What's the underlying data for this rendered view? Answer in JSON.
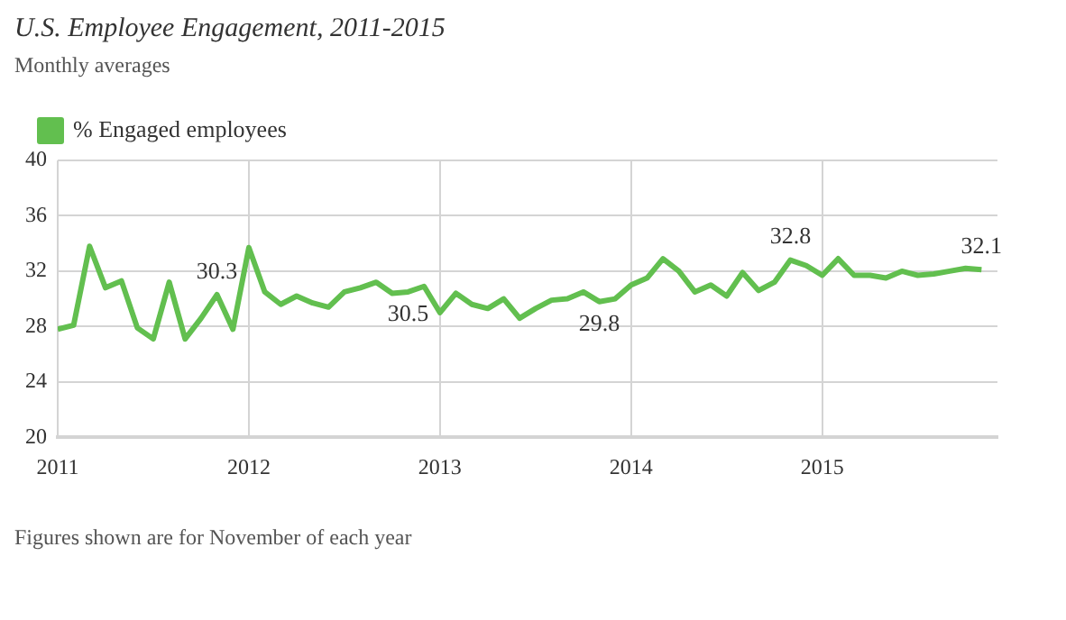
{
  "chart_data": {
    "type": "line",
    "title": "U.S. Employee Engagement, 2011-2015",
    "subtitle": "Monthly averages",
    "x": [
      "2011-01",
      "2011-02",
      "2011-03",
      "2011-04",
      "2011-05",
      "2011-06",
      "2011-07",
      "2011-08",
      "2011-09",
      "2011-10",
      "2011-11",
      "2011-12",
      "2012-01",
      "2012-02",
      "2012-03",
      "2012-04",
      "2012-05",
      "2012-06",
      "2012-07",
      "2012-08",
      "2012-09",
      "2012-10",
      "2012-11",
      "2012-12",
      "2013-01",
      "2013-02",
      "2013-03",
      "2013-04",
      "2013-05",
      "2013-06",
      "2013-07",
      "2013-08",
      "2013-09",
      "2013-10",
      "2013-11",
      "2013-12",
      "2014-01",
      "2014-02",
      "2014-03",
      "2014-04",
      "2014-05",
      "2014-06",
      "2014-07",
      "2014-08",
      "2014-09",
      "2014-10",
      "2014-11",
      "2014-12",
      "2015-01",
      "2015-02",
      "2015-03",
      "2015-04",
      "2015-05",
      "2015-06",
      "2015-07",
      "2015-08",
      "2015-09",
      "2015-10",
      "2015-11"
    ],
    "series": [
      {
        "name": "% Engaged employees",
        "color": "#62bf4f",
        "values": [
          27.8,
          28.1,
          33.8,
          30.8,
          31.3,
          27.9,
          27.1,
          31.2,
          27.1,
          28.6,
          30.3,
          27.8,
          33.7,
          30.5,
          29.6,
          30.2,
          29.7,
          29.4,
          30.5,
          30.8,
          31.2,
          30.4,
          30.5,
          30.9,
          29.0,
          30.4,
          29.6,
          29.3,
          30.0,
          28.6,
          29.3,
          29.9,
          30.0,
          30.5,
          29.8,
          30.0,
          31.0,
          31.5,
          32.9,
          32.0,
          30.5,
          31.0,
          30.2,
          31.9,
          30.6,
          31.2,
          32.8,
          32.4,
          31.7,
          32.9,
          31.7,
          31.7,
          31.5,
          32.0,
          31.7,
          31.8,
          32.0,
          32.2,
          32.1
        ],
        "value_labels": [
          null,
          null,
          null,
          null,
          null,
          null,
          null,
          null,
          null,
          null,
          "30.3",
          null,
          null,
          null,
          null,
          null,
          null,
          null,
          null,
          null,
          null,
          null,
          "30.5",
          null,
          null,
          null,
          null,
          null,
          null,
          null,
          null,
          null,
          null,
          null,
          "29.8",
          null,
          null,
          null,
          null,
          null,
          null,
          null,
          null,
          null,
          null,
          null,
          "32.8",
          null,
          null,
          null,
          null,
          null,
          null,
          null,
          null,
          null,
          null,
          null,
          "32.1"
        ]
      }
    ],
    "xlim": [
      "2011-01",
      "2015-12"
    ],
    "xticks": [
      "2011",
      "2012",
      "2013",
      "2014",
      "2015"
    ],
    "ylim": [
      20,
      40
    ],
    "yticks": [
      20,
      24,
      28,
      32,
      36,
      40
    ],
    "grid": true,
    "legend": "top left",
    "marker": "none",
    "line_style": "solid",
    "annotations": [
      "Figures shown are for November of each year"
    ]
  }
}
